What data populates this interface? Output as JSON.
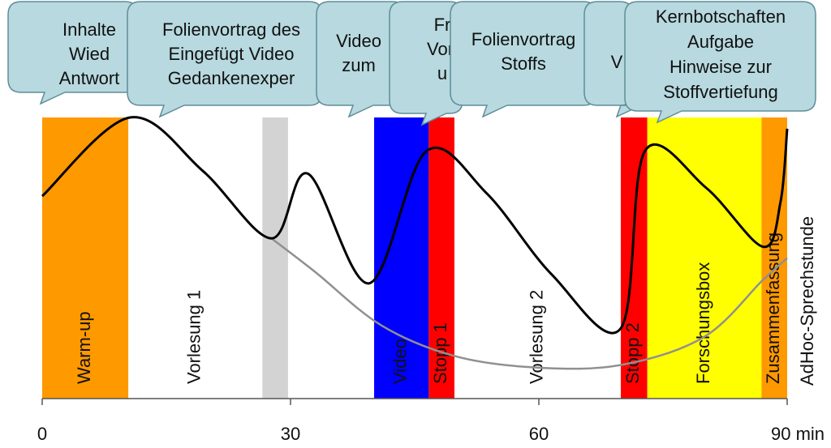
{
  "chart_data": {
    "type": "line",
    "xlim": [
      0,
      90
    ],
    "xticks": [
      0,
      30,
      60,
      {
        "value": 90,
        "label": "90 min"
      }
    ],
    "ylim": [
      0,
      100
    ],
    "sections": [
      {
        "label": "Warm-up",
        "start": 0,
        "end": 10.4,
        "color": "#ff9900"
      },
      {
        "label": "Vorlesung 1",
        "start": 10.4,
        "end": 26.6,
        "color": null
      },
      {
        "start": 26.6,
        "end": 29.7,
        "color": "#d3d3d3"
      },
      {
        "label": "Video",
        "start": 40.1,
        "end": 46.7,
        "color": "#0000ff"
      },
      {
        "label": "Stopp 1",
        "start": 46.7,
        "end": 49.8,
        "color": "#ff0000"
      },
      {
        "label": "Vorlesung 2",
        "start": 49.8,
        "end": 69.9,
        "color": null
      },
      {
        "label": "Stopp 2",
        "start": 69.9,
        "end": 73.1,
        "color": "#ff0000"
      },
      {
        "label": "Forschungsbox",
        "start": 73.1,
        "end": 86.9,
        "color": "#ffff00"
      },
      {
        "label": "Zusammenfassung",
        "start": 86.9,
        "end": 90,
        "color": "#ff9900"
      }
    ],
    "side_label": "AdHoc-Sprechstunde",
    "series": [
      {
        "color": "#000000",
        "x": [
          0,
          10.6,
          19.4,
          27.7,
          32.1,
          39.5,
          46.4,
          53.7,
          61.6,
          69.9,
          72.8,
          80.2,
          87.1,
          89.2,
          90
        ],
        "values": [
          72,
          100,
          81,
          57,
          80,
          41,
          88,
          73,
          44,
          25,
          88,
          75,
          54,
          70,
          96
        ]
      },
      {
        "color": "#909090",
        "x": [
          27.7,
          33,
          41,
          50,
          60,
          70,
          80,
          87,
          90
        ],
        "values": [
          57,
          45,
          26,
          15,
          11,
          12,
          22,
          42,
          50
        ]
      }
    ],
    "callouts": [
      {
        "lines": [
          "Inhalte",
          "Wied",
          "Antwort"
        ]
      },
      {
        "lines": [
          "Folienvortrag des",
          "Eingefügt Video",
          "Gedankenexper"
        ]
      },
      {
        "lines": [
          "Video",
          "zum"
        ]
      },
      {
        "lines": [
          "Fr",
          "Vorl",
          "u"
        ]
      },
      {
        "lines": [
          "Folienvortrag",
          "Stoffs"
        ]
      },
      {
        "lines": [
          "V"
        ]
      },
      {
        "lines": [
          "Kernbotschaften",
          "Aufgabe",
          "Hinweise zur",
          "Stoffvertiefung"
        ]
      }
    ]
  }
}
